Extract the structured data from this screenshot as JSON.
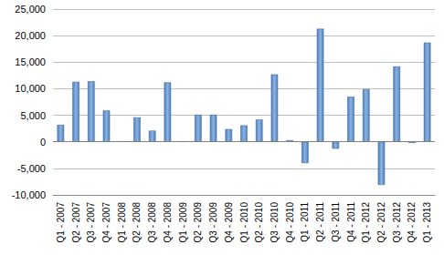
{
  "chart_data": {
    "type": "bar",
    "categories": [
      "Q1 - 2007",
      "Q2 - 2007",
      "Q3 - 2007",
      "Q4 - 2007",
      "Q1 - 2008",
      "Q2 - 2008",
      "Q3 - 2008",
      "Q4 - 2008",
      "Q1 - 2009",
      "Q2 - 2009",
      "Q3 - 2009",
      "Q4 - 2009",
      "Q1 - 2010",
      "Q2 - 2010",
      "Q3 - 2010",
      "Q4 - 2010",
      "Q1 - 2011",
      "Q2 - 2011",
      "Q3 - 2011",
      "Q4 - 2011",
      "Q1 - 2012",
      "Q2 - 2012",
      "Q3 - 2012",
      "Q4 - 2012",
      "Q1 - 2013"
    ],
    "values": [
      3200,
      11300,
      11400,
      5900,
      100,
      4600,
      2100,
      11200,
      100,
      5100,
      5100,
      2400,
      3100,
      4200,
      12700,
      300,
      -4000,
      21300,
      -1300,
      8500,
      9900,
      -8100,
      14200,
      -200,
      18700
    ],
    "color": "#4f81bd",
    "ylim": [
      -10000,
      25000
    ],
    "yticks": [
      {
        "value": -10000,
        "label": "-10,000"
      },
      {
        "value": -5000,
        "label": "-5,000"
      },
      0,
      {
        "value": 5000,
        "label": "5,000"
      },
      {
        "value": 10000,
        "label": "10,000"
      },
      {
        "value": 15000,
        "label": "15,000"
      },
      {
        "value": 20000,
        "label": "20,000"
      },
      {
        "value": 25000,
        "label": "25,000"
      }
    ],
    "grid": true
  }
}
